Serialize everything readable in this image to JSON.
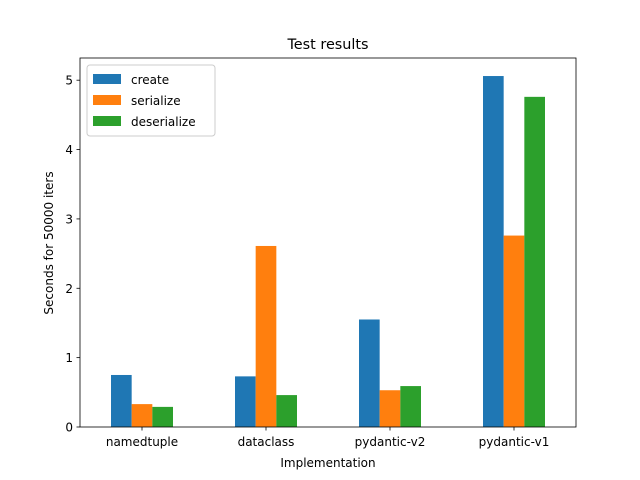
{
  "chart_data": {
    "type": "bar",
    "title": "Test results",
    "xlabel": "Implementation",
    "ylabel": "Seconds for 50000 iters",
    "categories": [
      "namedtuple",
      "dataclass",
      "pydantic-v2",
      "pydantic-v1"
    ],
    "series": [
      {
        "name": "create",
        "color": "#1f77b4",
        "values": [
          0.75,
          0.73,
          1.55,
          5.06
        ]
      },
      {
        "name": "serialize",
        "color": "#ff7f0e",
        "values": [
          0.33,
          2.61,
          0.53,
          2.76
        ]
      },
      {
        "name": "deserialize",
        "color": "#2ca02c",
        "values": [
          0.29,
          0.46,
          0.59,
          4.76
        ]
      }
    ],
    "ylim": [
      0,
      5.32
    ],
    "yticks": [
      0,
      1,
      2,
      3,
      4,
      5
    ],
    "legend_position": "top-left",
    "grid": false
  }
}
